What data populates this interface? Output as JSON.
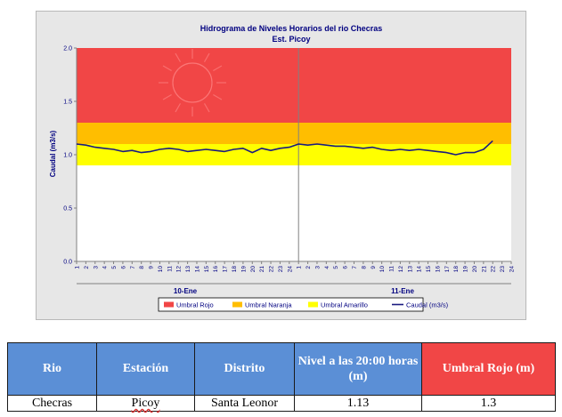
{
  "chart_data": {
    "type": "line",
    "title": "Hidrograma de Niveles Horarios del rio Checras",
    "subtitle": "Est. Picoy",
    "ylabel": "Caudal (m3/s)",
    "xlabel": "",
    "ylim": [
      0.0,
      2.0
    ],
    "y_ticks": [
      "0.0",
      "0.5",
      "1.0",
      "1.5",
      "2.0"
    ],
    "x_tick_labels": [
      "1",
      "2",
      "3",
      "4",
      "5",
      "6",
      "7",
      "8",
      "9",
      "10",
      "11",
      "12",
      "13",
      "14",
      "15",
      "16",
      "17",
      "18",
      "19",
      "20",
      "21",
      "22",
      "23",
      "24"
    ],
    "day_groups": [
      "10-Ene",
      "11-Ene"
    ],
    "thresholds": [
      {
        "name": "Umbral Rojo",
        "from": 1.3,
        "to": 2.0,
        "color": "#f14646"
      },
      {
        "name": "Umbral Naranja",
        "from": 1.1,
        "to": 1.3,
        "color": "#ffbe00"
      },
      {
        "name": "Umbral Amarillo",
        "from": 0.9,
        "to": 1.1,
        "color": "#ffff00"
      }
    ],
    "legend": [
      {
        "name": "Umbral Rojo",
        "color": "#f14646",
        "kind": "box"
      },
      {
        "name": "Umbral Naranja",
        "color": "#ffbe00",
        "kind": "box"
      },
      {
        "name": "Umbral Amarillo",
        "color": "#ffff00",
        "kind": "box"
      },
      {
        "name": "Caudal (m3/s)",
        "color": "#1a1a80",
        "kind": "line"
      }
    ],
    "legend_position": "bottom",
    "series": [
      {
        "name": "Caudal (m3/s)",
        "color": "#1a1a80",
        "values": [
          1.1,
          1.09,
          1.07,
          1.06,
          1.05,
          1.03,
          1.04,
          1.02,
          1.03,
          1.05,
          1.06,
          1.05,
          1.03,
          1.04,
          1.05,
          1.04,
          1.03,
          1.05,
          1.06,
          1.02,
          1.06,
          1.04,
          1.06,
          1.07,
          1.1,
          1.09,
          1.1,
          1.09,
          1.08,
          1.08,
          1.07,
          1.06,
          1.07,
          1.05,
          1.04,
          1.05,
          1.04,
          1.05,
          1.04,
          1.03,
          1.02,
          1.0,
          1.02,
          1.02,
          1.05,
          1.13
        ]
      }
    ]
  },
  "table": {
    "headers": [
      "Rio",
      "Estación",
      "Distrito",
      "Nivel a las 20:00 horas (m)",
      "Umbral Rojo (m)"
    ],
    "row": [
      "Checras",
      "Picoy",
      "Santa Leonor",
      "1.13",
      "1.3"
    ]
  }
}
